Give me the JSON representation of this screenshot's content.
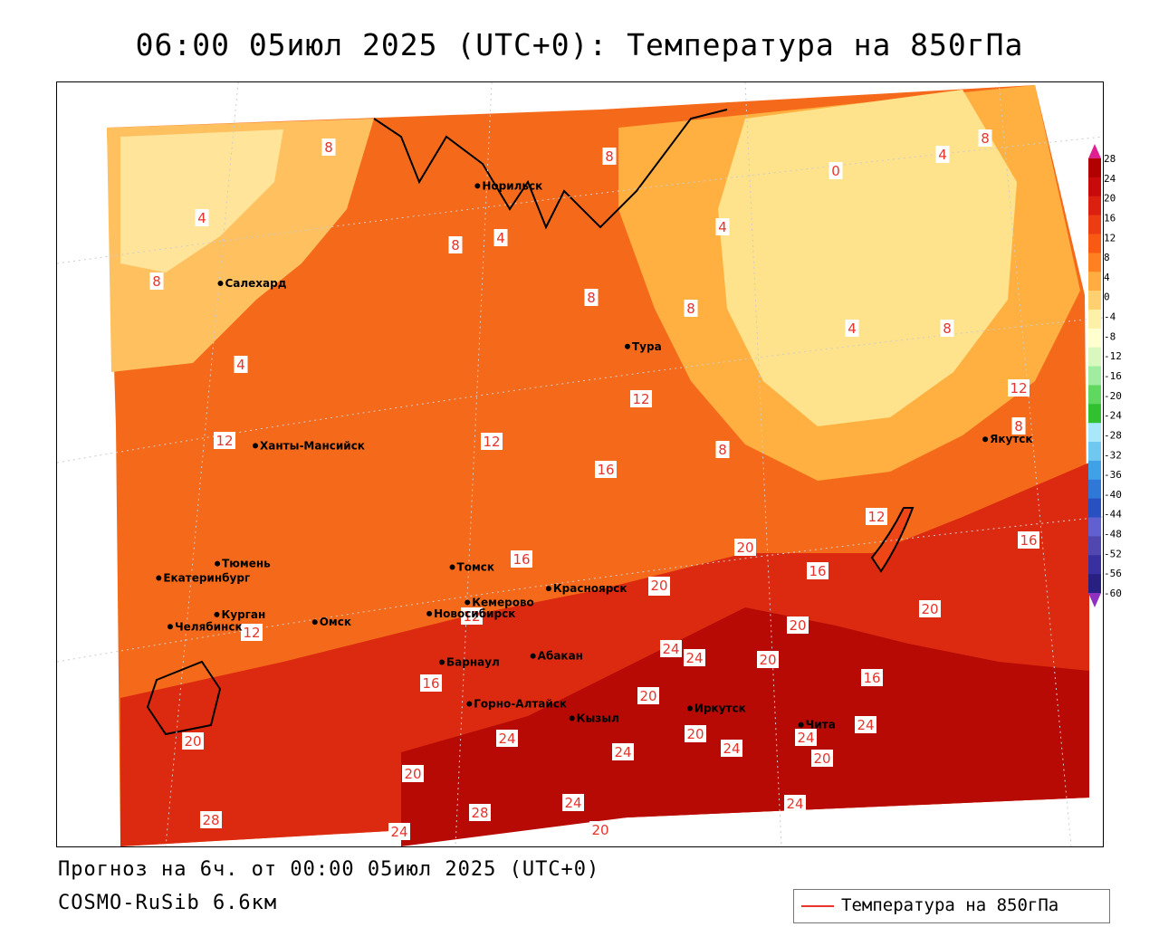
{
  "title": "06:00 05июл 2025 (UTC+0): Температура на 850гПа",
  "forecast_line": "Прогноз на 6ч. от 00:00 05июл 2025 (UTC+0)",
  "model_line": "COSMO-RuSib 6.6км",
  "legend_label": "Температура на 850гПа",
  "colorbar": {
    "ticks": [
      "28",
      "24",
      "20",
      "16",
      "12",
      "8",
      "4",
      "0",
      "-4",
      "-8",
      "-12",
      "-16",
      "-20",
      "-24",
      "-28",
      "-32",
      "-36",
      "-40",
      "-44",
      "-48",
      "-52",
      "-56",
      "-60"
    ],
    "colors": [
      "#b00000",
      "#c80a0a",
      "#dc2010",
      "#ec3c14",
      "#f85a14",
      "#ff8020",
      "#ffac40",
      "#ffd070",
      "#fff0a8",
      "#ffffd0",
      "#d8f8c0",
      "#a0eca0",
      "#60d860",
      "#30c030",
      "#a8e8f8",
      "#70c8f0",
      "#40a0e8",
      "#3078d8",
      "#2850c0",
      "#6060d0",
      "#5048b0",
      "#3830a0",
      "#282080"
    ],
    "top_color": "#e02090",
    "bottom_color": "#9030c0"
  },
  "cities": [
    {
      "name": "Норильск",
      "lon": 88.2,
      "lat": 69.35
    },
    {
      "name": "Якутск",
      "lon": 129.7,
      "lat": 62.0
    },
    {
      "name": "Салехард",
      "lon": 66.6,
      "lat": 66.5
    },
    {
      "name": "Тура",
      "lon": 100.2,
      "lat": 64.3
    },
    {
      "name": "Ханты-Мансийск",
      "lon": 69.0,
      "lat": 61.0
    },
    {
      "name": "Екатеринбург",
      "lon": 60.6,
      "lat": 56.8
    },
    {
      "name": "Тюмень",
      "lon": 65.5,
      "lat": 57.15
    },
    {
      "name": "Челябинск",
      "lon": 61.4,
      "lat": 55.15
    },
    {
      "name": "Курган",
      "lon": 65.3,
      "lat": 55.45
    },
    {
      "name": "Омск",
      "lon": 73.4,
      "lat": 54.98
    },
    {
      "name": "Новосибирск",
      "lon": 82.9,
      "lat": 55.0
    },
    {
      "name": "Томск",
      "lon": 84.95,
      "lat": 56.5
    },
    {
      "name": "Кемерово",
      "lon": 86.1,
      "lat": 55.35
    },
    {
      "name": "Красноярск",
      "lon": 92.9,
      "lat": 56.0
    },
    {
      "name": "Барнаул",
      "lon": 83.8,
      "lat": 53.35
    },
    {
      "name": "Абакан",
      "lon": 91.4,
      "lat": 53.7
    },
    {
      "name": "Горно-Алтайск",
      "lon": 85.95,
      "lat": 51.95
    },
    {
      "name": "Кызыл",
      "lon": 94.45,
      "lat": 51.7
    },
    {
      "name": "Иркутск",
      "lon": 104.3,
      "lat": 52.3
    },
    {
      "name": "Чита",
      "lon": 113.5,
      "lat": 52.0
    }
  ],
  "isotherm_labels": [
    "8",
    "0",
    "4",
    "8",
    "4",
    "8",
    "8",
    "8",
    "4",
    "8",
    "4",
    "4",
    "8",
    "8",
    "12",
    "4",
    "12",
    "12",
    "8",
    "12",
    "16",
    "8",
    "16",
    "20",
    "12",
    "16",
    "20",
    "16",
    "12",
    "20",
    "20",
    "20",
    "12",
    "24",
    "16",
    "20",
    "24",
    "20",
    "16",
    "24",
    "20",
    "24",
    "20",
    "24",
    "24",
    "20",
    "24",
    "20",
    "28",
    "24",
    "24",
    "28",
    "24",
    "20"
  ]
}
